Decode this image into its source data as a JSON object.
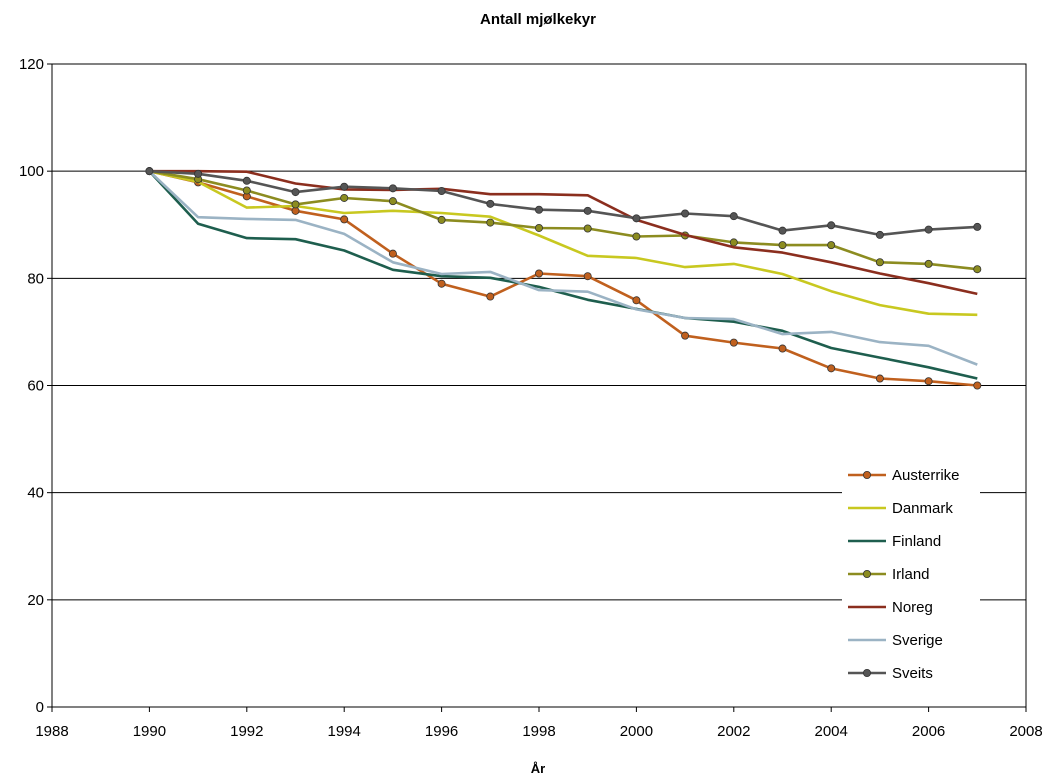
{
  "chart_data": {
    "type": "line",
    "title": "Antall mjølkekyr",
    "xlabel": "År",
    "ylabel": "",
    "xlim": [
      1988,
      2008
    ],
    "ylim": [
      0,
      120
    ],
    "xticks": [
      1988,
      1990,
      1992,
      1994,
      1996,
      1998,
      2000,
      2002,
      2004,
      2006,
      2008
    ],
    "yticks": [
      0,
      20,
      40,
      60,
      80,
      100,
      120
    ],
    "x": [
      1990,
      1991,
      1992,
      1993,
      1994,
      1995,
      1996,
      1997,
      1998,
      1999,
      2000,
      2001,
      2002,
      2003,
      2004,
      2005,
      2006,
      2007
    ],
    "grid": "horizontal major gridlines",
    "legend_position": "right",
    "series": [
      {
        "name": "Austerrike",
        "color": "#C0601E",
        "marker": true,
        "values": [
          100,
          97.9,
          95.3,
          92.6,
          91.0,
          84.6,
          79.0,
          76.6,
          80.9,
          80.4,
          75.9,
          69.3,
          68.0,
          66.9,
          63.2,
          61.3,
          60.8,
          60.0
        ]
      },
      {
        "name": "Danmark",
        "color": "#C8C820",
        "marker": false,
        "values": [
          100,
          98.0,
          93.2,
          93.5,
          92.2,
          92.6,
          92.2,
          91.5,
          88.0,
          84.2,
          83.8,
          82.1,
          82.7,
          80.8,
          77.6,
          75.0,
          73.4,
          73.2
        ]
      },
      {
        "name": "Finland",
        "color": "#1E5E4E",
        "marker": false,
        "values": [
          100,
          90.2,
          87.5,
          87.3,
          85.2,
          81.6,
          80.4,
          80.1,
          78.4,
          76.0,
          74.3,
          72.6,
          71.9,
          70.2,
          67.0,
          65.2,
          63.4,
          61.3
        ]
      },
      {
        "name": "Irland",
        "color": "#8C8C20",
        "marker": true,
        "values": [
          100,
          98.5,
          96.4,
          93.8,
          95.0,
          94.4,
          90.9,
          90.4,
          89.4,
          89.3,
          87.8,
          88.0,
          86.7,
          86.2,
          86.2,
          83.0,
          82.7,
          81.7
        ]
      },
      {
        "name": "Noreg",
        "color": "#8B2E1E",
        "marker": false,
        "values": [
          100,
          100.0,
          99.9,
          97.7,
          96.6,
          96.5,
          96.7,
          95.7,
          95.7,
          95.5,
          90.9,
          88.1,
          85.8,
          84.8,
          83.0,
          80.9,
          79.1,
          77.1
        ]
      },
      {
        "name": "Sverige",
        "color": "#9BB3C4",
        "marker": false,
        "values": [
          100,
          91.4,
          91.1,
          90.9,
          88.3,
          83.0,
          80.8,
          81.2,
          77.8,
          77.5,
          74.2,
          72.6,
          72.4,
          69.6,
          70.0,
          68.1,
          67.4,
          63.9
        ]
      },
      {
        "name": "Sveits",
        "color": "#555555",
        "marker": true,
        "values": [
          100,
          99.5,
          98.2,
          96.1,
          97.1,
          96.8,
          96.3,
          93.9,
          92.8,
          92.6,
          91.2,
          92.1,
          91.6,
          88.9,
          89.9,
          88.1,
          89.1,
          89.6
        ]
      }
    ]
  }
}
